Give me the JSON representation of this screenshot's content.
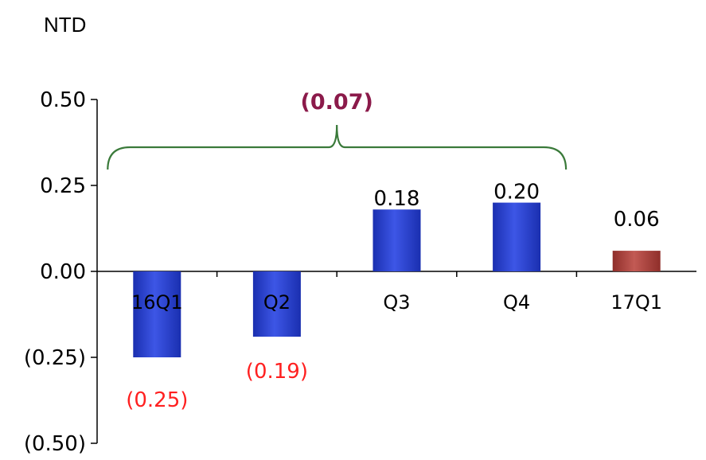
{
  "unit_label": "NTD",
  "colors": {
    "positive_bar": "#2a3fd0",
    "positive_bar_edge": "#1e2ea8",
    "latest_bar": "#a8403b",
    "negative_label": "#ff2020",
    "bracket": "#3a7a3a",
    "bracket_label": "#8b1a4a",
    "axis": "#000000"
  },
  "chart_data": {
    "type": "bar",
    "categories": [
      "16Q1",
      "Q2",
      "Q3",
      "Q4",
      "17Q1"
    ],
    "values": [
      -0.25,
      -0.19,
      0.18,
      0.2,
      0.06
    ],
    "data_labels": [
      "(0.25)",
      "(0.19)",
      "0.18",
      "0.20",
      "0.06"
    ],
    "y_tick_labels": [
      "0.50",
      "0.25",
      "0.00",
      "(0.25)",
      "(0.50)"
    ],
    "y_tick_values": [
      0.5,
      0.25,
      0.0,
      -0.25,
      -0.5
    ],
    "ylim": [
      -0.5,
      0.5
    ],
    "grid": false,
    "annotation": {
      "text": "(0.07)",
      "spans_categories": [
        "16Q1",
        "Q2",
        "Q3",
        "Q4"
      ]
    }
  }
}
